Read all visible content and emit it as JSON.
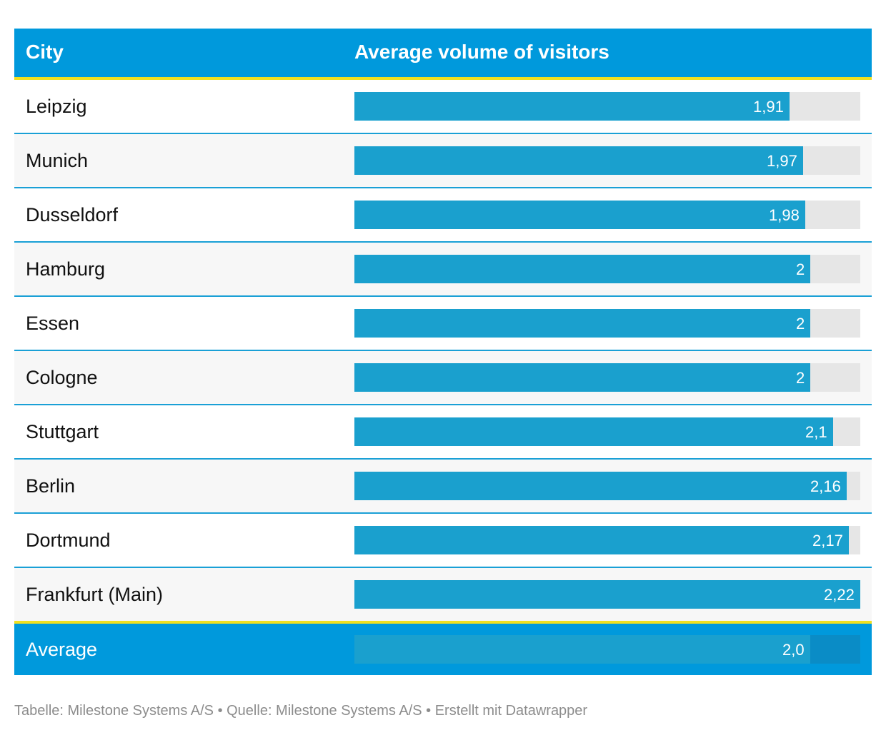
{
  "table": {
    "header": {
      "city": "City",
      "metric": "Average volume of visitors"
    },
    "average": {
      "label": "Average",
      "value": 2.0,
      "value_label": "2,0"
    }
  },
  "chart_data": {
    "type": "table",
    "columns": [
      "City",
      "Average volume of visitors"
    ],
    "scale_max": 2.22,
    "categories": [
      "Leipzig",
      "Munich",
      "Dusseldorf",
      "Hamburg",
      "Essen",
      "Cologne",
      "Stuttgart",
      "Berlin",
      "Dortmund",
      "Frankfurt (Main)"
    ],
    "values": [
      1.91,
      1.97,
      1.98,
      2,
      2,
      2,
      2.1,
      2.16,
      2.17,
      2.22
    ],
    "value_labels": [
      "1,91",
      "1,97",
      "1,98",
      "2",
      "2",
      "2",
      "2,1",
      "2,16",
      "2,17",
      "2,22"
    ]
  },
  "footer": {
    "text": "Tabelle: Milestone Systems A/S • Quelle: Milestone Systems A/S • Erstellt mit Datawrapper"
  },
  "colors": {
    "header_bg": "#0099dc",
    "accent_line": "#f0e020",
    "bar": "#1aa0ce",
    "bar_track": "#e6e6e6"
  }
}
